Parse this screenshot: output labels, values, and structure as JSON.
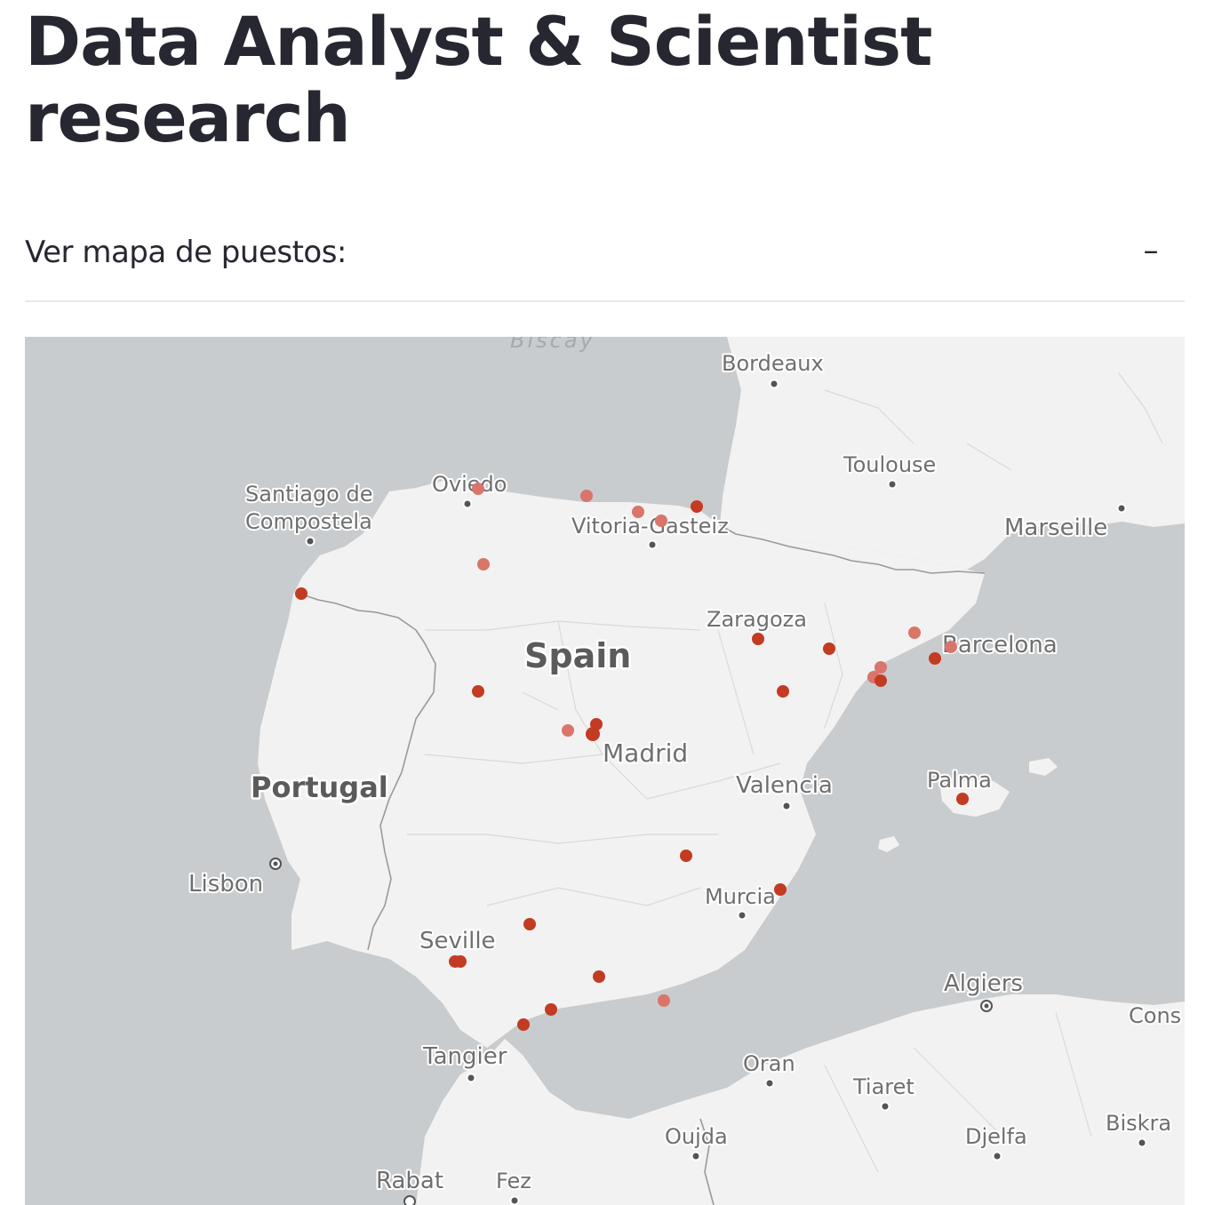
{
  "page": {
    "title": "Data Analyst & Scientist research"
  },
  "expander": {
    "label": "Ver mapa de puestos:",
    "toggle_symbol": "–"
  },
  "map": {
    "sea_label": "Biscay",
    "countries": {
      "spain": "Spain",
      "portugal": "Portugal"
    },
    "cities": {
      "bordeaux": "Bordeaux",
      "toulouse": "Toulouse",
      "marseille": "Marseille",
      "santiago": "Santiago de",
      "santiago2": "Compostela",
      "oviedo": "Oviedo",
      "vitoria": "Vitoria-Gasteiz",
      "zaragoza": "Zaragoza",
      "barcelona": "Barcelona",
      "madrid": "Madrid",
      "valencia": "Valencia",
      "palma": "Palma",
      "lisbon": "Lisbon",
      "seville": "Seville",
      "murcia": "Murcia",
      "algiers": "Algiers",
      "constantine": "Cons",
      "tangier": "Tangier",
      "oran": "Oran",
      "tiaret": "Tiaret",
      "oujda": "Oujda",
      "djelfa": "Djelfa",
      "biskra": "Biskra",
      "rabat": "Rabat",
      "fez": "Fez"
    },
    "colors": {
      "water": "#c9ccce",
      "land": "#f2f2f2",
      "marker": "#c23b22",
      "marker_light": "#d9756a"
    }
  }
}
